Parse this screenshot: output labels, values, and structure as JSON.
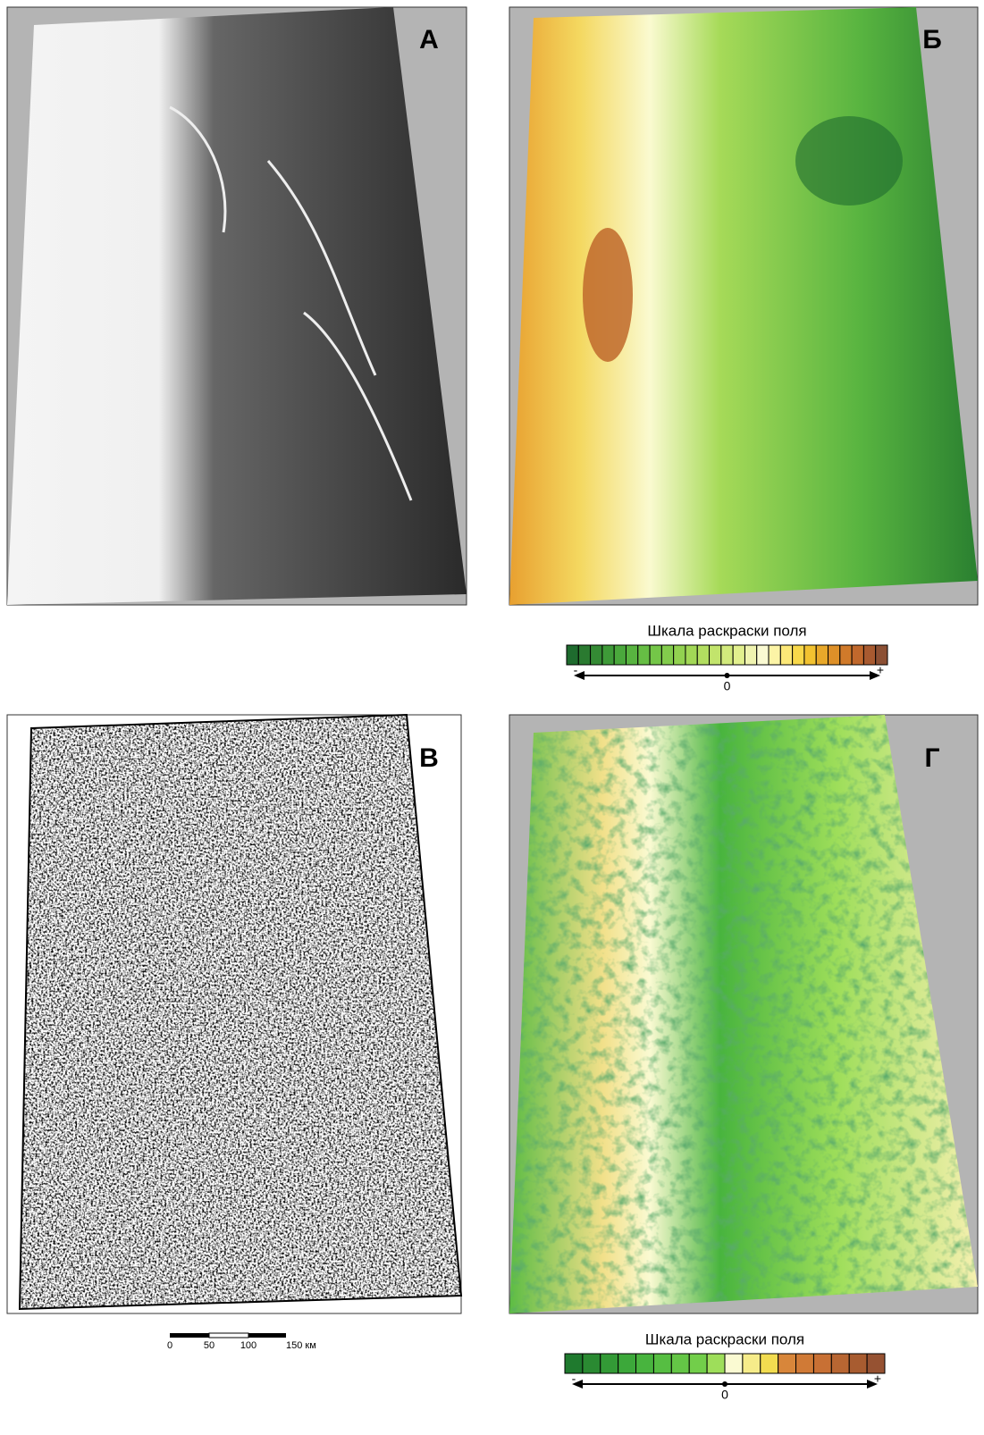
{
  "panels": [
    {
      "label": "А"
    },
    {
      "label": "Б"
    },
    {
      "label": "В"
    },
    {
      "label": "Г"
    }
  ],
  "colorbars": [
    {
      "title": "Шкала раскраски поля",
      "ticks": [
        "-",
        "0",
        "+"
      ],
      "colors": [
        "#1e6b2e",
        "#2a7a30",
        "#348a34",
        "#3e9a38",
        "#4aa83c",
        "#58b440",
        "#66be44",
        "#74c648",
        "#82cc4c",
        "#92d250",
        "#a2d856",
        "#b2de60",
        "#c2e46c",
        "#d2ea7c",
        "#e2f08e",
        "#f0f4b0",
        "#fafad2",
        "#fcf4a6",
        "#fce878",
        "#f8d84a",
        "#f2c230",
        "#e8a82a",
        "#de9028",
        "#d07a2a",
        "#c0682c",
        "#a85a30",
        "#8c5034"
      ]
    },
    {
      "title": "Шкала раскраски поля",
      "ticks": [
        "-",
        "0",
        "+"
      ],
      "colors": [
        "#1f7a2e",
        "#2a8a32",
        "#339a36",
        "#3ca83a",
        "#48b43e",
        "#56be42",
        "#64c646",
        "#72ce4a",
        "#9ede5a",
        "#fafad2",
        "#f6ec8a",
        "#f2dc50",
        "#d8863a",
        "#d07a36",
        "#c87034",
        "#b86632",
        "#a85c30",
        "#965232"
      ]
    }
  ],
  "scale_bar": {
    "labels": [
      "0",
      "50",
      "100",
      "150 км"
    ]
  }
}
